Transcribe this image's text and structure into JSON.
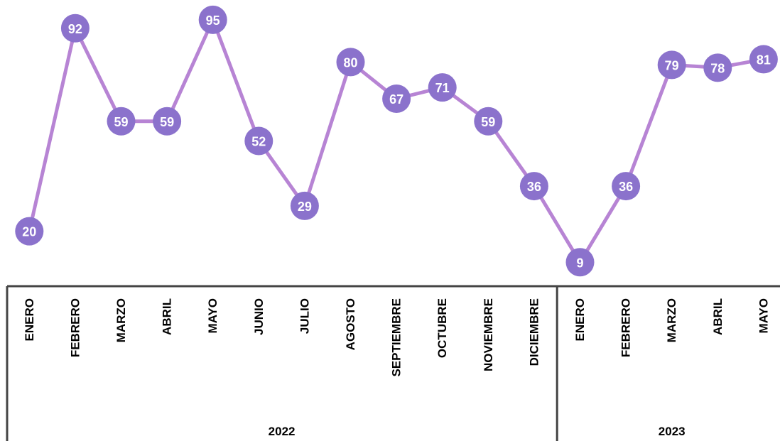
{
  "chart_data": {
    "type": "line",
    "groups": [
      {
        "name": "2022",
        "categories": [
          "ENERO",
          "FEBRERO",
          "MARZO",
          "ABRIL",
          "MAYO",
          "JUNIO",
          "JULIO",
          "AGOSTO",
          "SEPTIEMBRE",
          "OCTUBRE",
          "NOVIEMBRE",
          "DICIEMBRE"
        ]
      },
      {
        "name": "2023",
        "categories": [
          "ENERO",
          "FEBRERO",
          "MARZO",
          "ABRIL",
          "MAYO"
        ]
      }
    ],
    "values": [
      20,
      92,
      59,
      59,
      95,
      52,
      29,
      80,
      67,
      71,
      59,
      36,
      9,
      36,
      79,
      78,
      81
    ],
    "color": "#b784d4",
    "marker_color": "#8b72cc",
    "ylim": [
      0,
      100
    ]
  }
}
